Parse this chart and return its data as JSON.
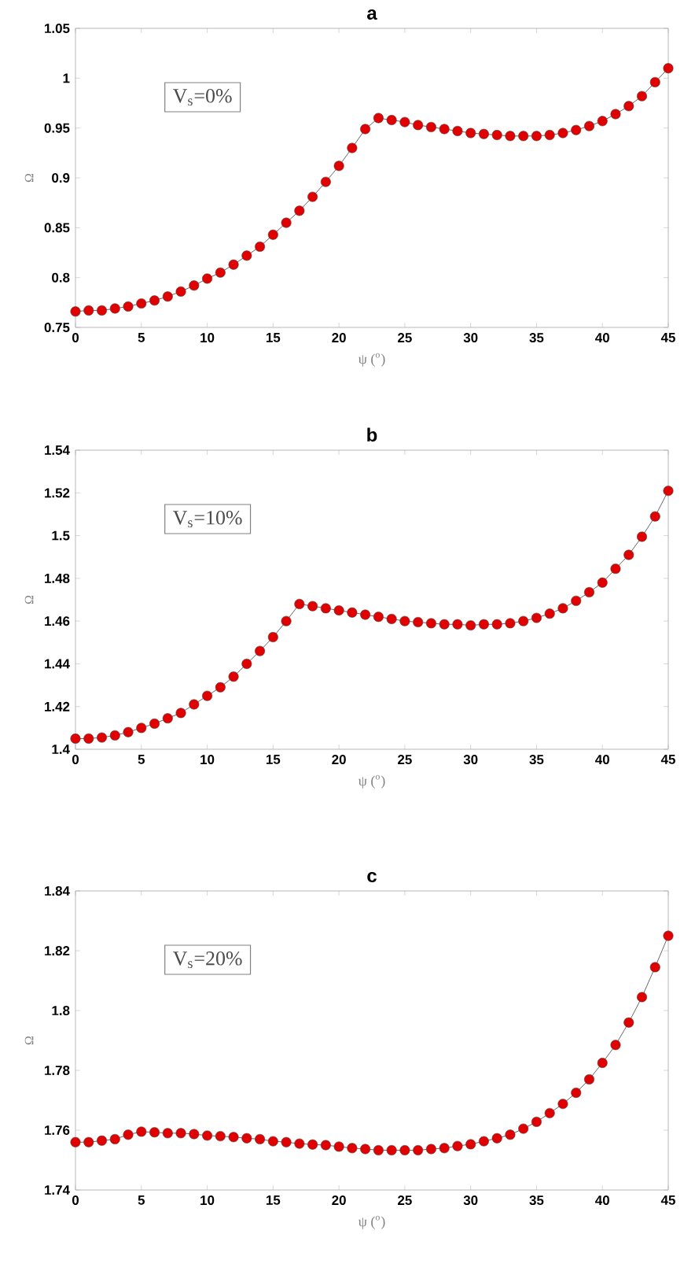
{
  "chart_data": [
    {
      "type": "line",
      "title": "a",
      "xlabel": "ψ ($^{o}$)",
      "ylabel": "Ω",
      "annotations": [
        "V$_{s}$=0%"
      ],
      "marker": "circle",
      "x": [
        0,
        1,
        2,
        3,
        4,
        5,
        6,
        7,
        8,
        9,
        10,
        11,
        12,
        13,
        14,
        15,
        16,
        17,
        18,
        19,
        20,
        21,
        22,
        23,
        24,
        25,
        26,
        27,
        28,
        29,
        30,
        31,
        32,
        33,
        34,
        35,
        36,
        37,
        38,
        39,
        40,
        41,
        42,
        43,
        44,
        45
      ],
      "series": [
        {
          "color": "#e00000",
          "values": [
            0.766,
            0.767,
            0.767,
            0.769,
            0.771,
            0.774,
            0.777,
            0.781,
            0.786,
            0.792,
            0.799,
            0.805,
            0.813,
            0.822,
            0.831,
            0.843,
            0.855,
            0.867,
            0.881,
            0.896,
            0.912,
            0.93,
            0.949,
            0.96,
            0.958,
            0.956,
            0.953,
            0.951,
            0.949,
            0.947,
            0.945,
            0.944,
            0.943,
            0.942,
            0.942,
            0.942,
            0.943,
            0.945,
            0.948,
            0.952,
            0.957,
            0.964,
            0.972,
            0.982,
            0.996,
            1.01
          ]
        }
      ],
      "xlim": [
        0,
        45
      ],
      "xticks": [
        0,
        5,
        10,
        15,
        20,
        25,
        30,
        35,
        40,
        45
      ],
      "ylim": [
        0.75,
        1.05
      ],
      "yticks": [
        0.75,
        0.8,
        0.85,
        0.9,
        0.95,
        1,
        1.05
      ]
    },
    {
      "type": "line",
      "title": "b",
      "xlabel": "ψ ($^{o}$)",
      "ylabel": "Ω",
      "annotations": [
        "V$_{s}$=10%"
      ],
      "marker": "circle",
      "x": [
        0,
        1,
        2,
        3,
        4,
        5,
        6,
        7,
        8,
        9,
        10,
        11,
        12,
        13,
        14,
        15,
        16,
        17,
        18,
        19,
        20,
        21,
        22,
        23,
        24,
        25,
        26,
        27,
        28,
        29,
        30,
        31,
        32,
        33,
        34,
        35,
        36,
        37,
        38,
        39,
        40,
        41,
        42,
        43,
        44,
        45
      ],
      "series": [
        {
          "color": "#e00000",
          "values": [
            1.405,
            1.405,
            1.4055,
            1.4065,
            1.408,
            1.41,
            1.412,
            1.4145,
            1.417,
            1.421,
            1.425,
            1.429,
            1.434,
            1.44,
            1.446,
            1.4525,
            1.46,
            1.468,
            1.467,
            1.466,
            1.465,
            1.464,
            1.463,
            1.462,
            1.461,
            1.46,
            1.4595,
            1.459,
            1.4585,
            1.4585,
            1.458,
            1.4585,
            1.4585,
            1.459,
            1.46,
            1.4615,
            1.4635,
            1.466,
            1.4695,
            1.4735,
            1.478,
            1.4845,
            1.491,
            1.4995,
            1.509,
            1.521
          ]
        }
      ],
      "xlim": [
        0,
        45
      ],
      "xticks": [
        0,
        5,
        10,
        15,
        20,
        25,
        30,
        35,
        40,
        45
      ],
      "ylim": [
        1.4,
        1.54
      ],
      "yticks": [
        1.4,
        1.42,
        1.44,
        1.46,
        1.48,
        1.5,
        1.52,
        1.54
      ]
    },
    {
      "type": "line",
      "title": "c",
      "xlabel": "ψ ($^{o}$)",
      "ylabel": "Ω",
      "annotations": [
        "V$_{s}$=20%"
      ],
      "marker": "circle",
      "x": [
        0,
        1,
        2,
        3,
        4,
        5,
        6,
        7,
        8,
        9,
        10,
        11,
        12,
        13,
        14,
        15,
        16,
        17,
        18,
        19,
        20,
        21,
        22,
        23,
        24,
        25,
        26,
        27,
        28,
        29,
        30,
        31,
        32,
        33,
        34,
        35,
        36,
        37,
        38,
        39,
        40,
        41,
        42,
        43,
        44,
        45
      ],
      "series": [
        {
          "color": "#e00000",
          "values": [
            1.756,
            1.756,
            1.7565,
            1.757,
            1.7585,
            1.7595,
            1.7593,
            1.759,
            1.759,
            1.7587,
            1.7582,
            1.758,
            1.7577,
            1.7573,
            1.757,
            1.7563,
            1.756,
            1.7555,
            1.7552,
            1.755,
            1.7545,
            1.754,
            1.7537,
            1.7533,
            1.7533,
            1.7533,
            1.7533,
            1.7537,
            1.754,
            1.7547,
            1.7553,
            1.7563,
            1.7573,
            1.7585,
            1.7605,
            1.7628,
            1.7657,
            1.7688,
            1.7725,
            1.777,
            1.7825,
            1.7885,
            1.796,
            1.8045,
            1.8145,
            1.825
          ]
        }
      ],
      "xlim": [
        0,
        45
      ],
      "xticks": [
        0,
        5,
        10,
        15,
        20,
        25,
        30,
        35,
        40,
        45
      ],
      "ylim": [
        1.74,
        1.84
      ],
      "yticks": [
        1.74,
        1.76,
        1.78,
        1.8,
        1.82,
        1.84
      ]
    }
  ]
}
